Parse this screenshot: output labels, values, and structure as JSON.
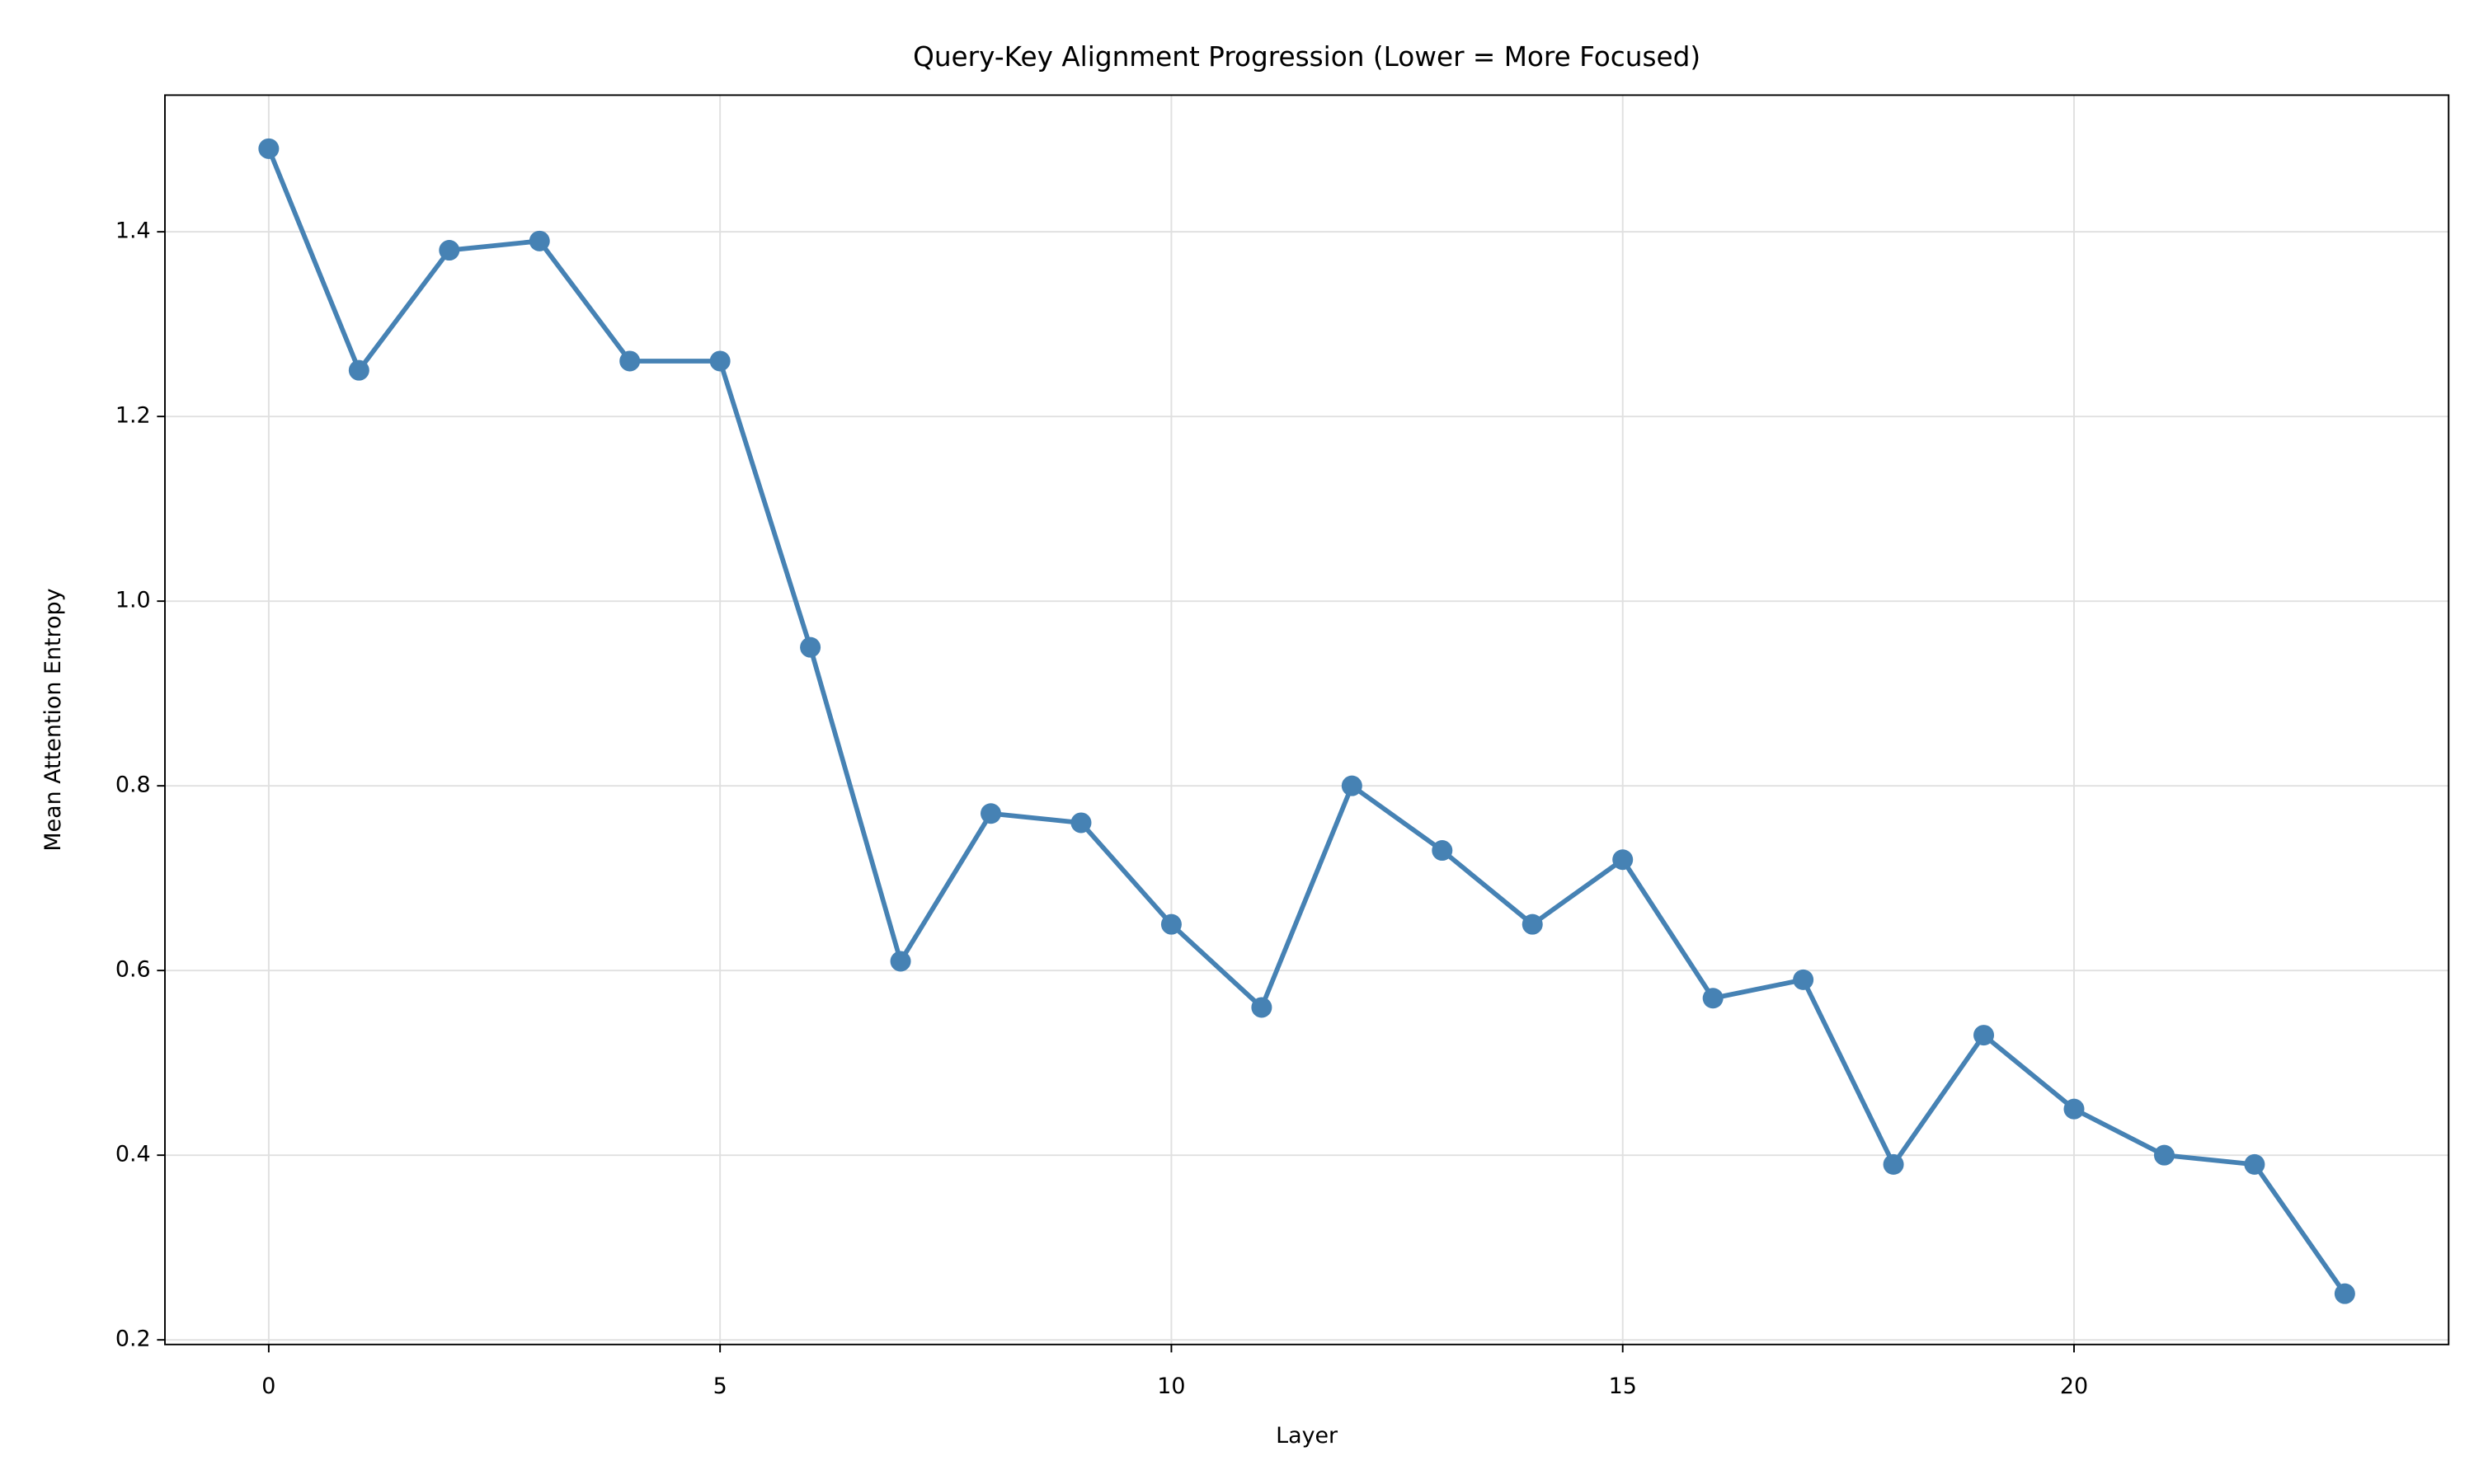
{
  "chart_data": {
    "type": "line",
    "title": "Query-Key Alignment Progression (Lower = More Focused)",
    "xlabel": "Layer",
    "ylabel": "Mean Attention Entropy",
    "x": [
      0,
      1,
      2,
      3,
      4,
      5,
      6,
      7,
      8,
      9,
      10,
      11,
      12,
      13,
      14,
      15,
      16,
      17,
      18,
      19,
      20,
      21,
      22,
      23
    ],
    "series": [
      {
        "color": "#4682b4",
        "values": [
          1.49,
          1.25,
          1.38,
          1.39,
          1.26,
          1.26,
          0.95,
          0.61,
          0.77,
          0.76,
          0.65,
          0.56,
          0.8,
          0.73,
          0.65,
          0.72,
          0.57,
          0.59,
          0.39,
          0.53,
          0.45,
          0.4,
          0.39,
          0.25
        ]
      }
    ],
    "xlim": [
      -1.15,
      24.15
    ],
    "xticks": [
      0,
      5,
      10,
      15,
      20
    ],
    "ylim": [
      0.195,
      1.548
    ],
    "yticks": [
      0.2,
      0.4,
      0.6,
      0.8,
      {
        "value": 1,
        "label": "1.0"
      },
      1.2,
      1.4
    ],
    "grid": true
  }
}
